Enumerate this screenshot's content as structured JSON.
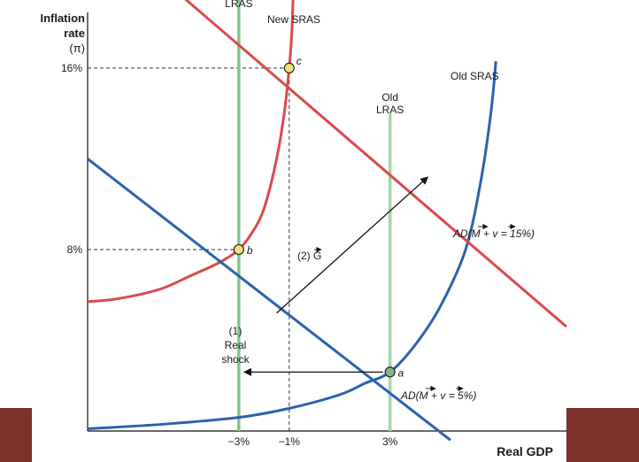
{
  "chart_data": {
    "type": "line",
    "ylabel": "Inflation\nrate",
    "ylabel_unit": "(π)",
    "xlabel": "Real GDP",
    "x_ticks": [
      {
        "label": "−3%",
        "value": -3
      },
      {
        "label": "−1%",
        "value": -1
      },
      {
        "label": "3%",
        "value": 3
      }
    ],
    "y_ticks": [
      {
        "label": "8%",
        "value": 8
      },
      {
        "label": "16%",
        "value": 16
      }
    ],
    "xlim": [
      -9,
      10
    ],
    "ylim": [
      0,
      19
    ],
    "grid": false,
    "series": [
      {
        "key": "lras",
        "name": "LRAS",
        "kind": "vertical",
        "color": "#82c688",
        "x": -3
      },
      {
        "key": "old_lras",
        "name": "Old\nLRAS",
        "kind": "vertical",
        "color": "#a6d6a6",
        "x": 3,
        "y_top": 14
      },
      {
        "key": "new_sras",
        "name": "New SRAS",
        "kind": "curve",
        "color": "#d94a4e",
        "points": [
          [
            -9,
            5.7
          ],
          [
            -8,
            5.8
          ],
          [
            -7,
            6.0
          ],
          [
            -6,
            6.3
          ],
          [
            -5,
            6.8
          ],
          [
            -4,
            7.3
          ],
          [
            -3.5,
            7.6
          ],
          [
            -3,
            8.0
          ],
          [
            -2.5,
            8.7
          ],
          [
            -2,
            9.8
          ],
          [
            -1.5,
            12.0
          ],
          [
            -1.2,
            14.0
          ],
          [
            -1,
            16.0
          ],
          [
            -0.9,
            17.5
          ],
          [
            -0.85,
            19.0
          ]
        ]
      },
      {
        "key": "old_sras",
        "name": "Old SRAS",
        "kind": "curve",
        "color": "#2a62ad",
        "points": [
          [
            -9,
            0.1
          ],
          [
            -6,
            0.3
          ],
          [
            -3,
            0.6
          ],
          [
            -1,
            1.0
          ],
          [
            1,
            1.6
          ],
          [
            2,
            2.1
          ],
          [
            3,
            2.6
          ],
          [
            4,
            3.8
          ],
          [
            5,
            5.5
          ],
          [
            6,
            8.0
          ],
          [
            6.6,
            11.0
          ],
          [
            7,
            14.0
          ],
          [
            7.2,
            16.3
          ]
        ]
      },
      {
        "key": "ad_high",
        "name": "AD(M + v = 15%)",
        "kind": "line",
        "color": "#d94a4e",
        "points": [
          [
            -5.5,
            19.4
          ],
          [
            10,
            4.6
          ]
        ]
      },
      {
        "key": "ad_low",
        "name": "AD(M + v = 5%)",
        "kind": "line",
        "color": "#2a62ad",
        "points": [
          [
            -9,
            12.0
          ],
          [
            5.4,
            -0.4
          ]
        ]
      }
    ],
    "points": [
      {
        "label": "a",
        "x": 3,
        "y": 2.6,
        "color": "#7fba84"
      },
      {
        "label": "b",
        "x": -3,
        "y": 8,
        "color": "#f4e27c"
      },
      {
        "label": "c",
        "x": -1,
        "y": 16,
        "color": "#f4e27c"
      }
    ],
    "annotations": [
      {
        "key": "shock",
        "text": "(1)\nReal\nshock",
        "from": [
          3,
          2.6
        ],
        "to": [
          -3,
          2.6
        ]
      },
      {
        "key": "gov",
        "text": "(2) G",
        "from": [
          -1.5,
          5.2
        ],
        "to": [
          4.5,
          11.2
        ]
      }
    ],
    "ad_labels": {
      "high": {
        "prefix": "AD(",
        "m": "M",
        "plus": " + ",
        "v": "v",
        "suffix": " = 15%)"
      },
      "low": {
        "prefix": "AD(",
        "m": "M",
        "plus": " + ",
        "v": "v",
        "suffix": " = 5%)"
      }
    }
  }
}
